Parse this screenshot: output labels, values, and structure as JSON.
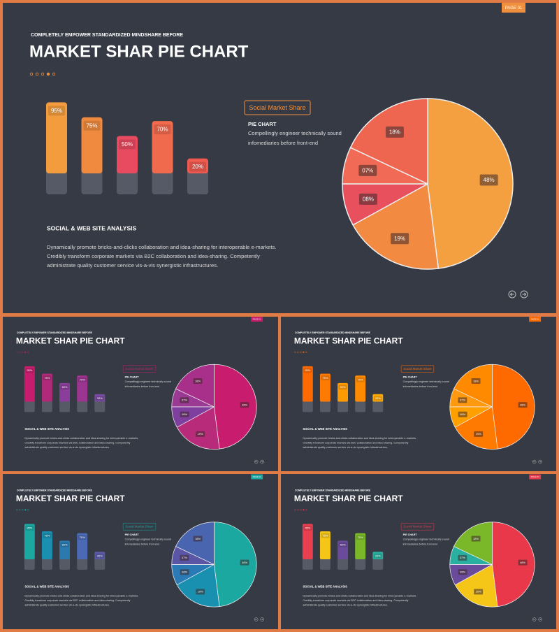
{
  "slides": [
    {
      "page_label": "PAGE 01",
      "kicker": "COMPLETELY  EMPOWER  STANDARDIZED  MINDSHARE  BEFORE",
      "title": "MARKET SHAR PIE CHART",
      "accent": "#f0903e",
      "bar_chart": {
        "type": "bar",
        "values": [
          95,
          75,
          50,
          70,
          20
        ],
        "value_labels": [
          "95%",
          "75%",
          "50%",
          "70%",
          "20%"
        ],
        "colors": [
          "#f39c3d",
          "#f08a3e",
          "#e84a5f",
          "#f06a4e",
          "#f05a50"
        ]
      },
      "tag": "Social Market  Share",
      "pie_heading": "PIE CHART",
      "pie_text": [
        "Compellingly engineer technically sound",
        "infomediaries before front-end"
      ],
      "analysis_title": "SOCIAL & WEB SITE ANALYSIS",
      "analysis_text": [
        "Dynamically promote bricks-and-clicks collaboration and idea-sharing for interoperable e-markets.",
        "Credibly transform corporate markets via B2C collaboration and idea-sharing. Competently",
        "administrate quality customer service vis-a-vis synergistic infrastructures."
      ],
      "pie_chart": {
        "type": "pie",
        "values": [
          48,
          19,
          8,
          7,
          18
        ],
        "value_labels": [
          "48%",
          "19%",
          "08%",
          "07%",
          "18%"
        ],
        "colors": [
          "#f5a040",
          "#f28a42",
          "#e8505e",
          "#f06a55",
          "#ef6650"
        ]
      }
    },
    {
      "page_label": "PAGE 01",
      "kicker": "COMPLETELY  EMPOWER  STANDARDIZED  MINDSHARE  BEFORE",
      "title": "MARKET SHAR PIE CHART",
      "accent": "#c81d6e",
      "bar_chart": {
        "type": "bar",
        "values": [
          95,
          75,
          50,
          70,
          20
        ],
        "value_labels": [
          "95%",
          "75%",
          "50%",
          "70%",
          "20%"
        ],
        "colors": [
          "#c81d6e",
          "#b02a7a",
          "#8a3d9a",
          "#9a3590",
          "#7a4aa0"
        ]
      },
      "tag": "Social Market  Share",
      "pie_heading": "PIE CHART",
      "pie_text": [
        "Compellingly engineer technically sound",
        "infomediaries before front-end"
      ],
      "analysis_title": "SOCIAL & WEB SITE ANALYSIS",
      "analysis_text": [
        "Dynamically promote bricks-and-clicks collaboration and idea-sharing for interoperable e-markets.",
        "Credibly transform corporate markets via B2C collaboration and idea-sharing. Competently",
        "administrate quality customer service vis-a-vis synergistic infrastructures."
      ],
      "pie_chart": {
        "type": "pie",
        "values": [
          48,
          19,
          8,
          7,
          18
        ],
        "value_labels": [
          "48%",
          "19%",
          "08%",
          "07%",
          "18%"
        ],
        "colors": [
          "#c81d6e",
          "#b82a7a",
          "#7e3f9e",
          "#9a3a95",
          "#a8308a"
        ]
      }
    },
    {
      "page_label": "PAGE 01",
      "kicker": "COMPLETELY  EMPOWER  STANDARDIZED  MINDSHARE  BEFORE",
      "title": "MARKET SHAR PIE CHART",
      "accent": "#ff6a00",
      "bar_chart": {
        "type": "bar",
        "values": [
          95,
          75,
          50,
          70,
          20
        ],
        "value_labels": [
          "95%",
          "75%",
          "50%",
          "70%",
          "20%"
        ],
        "colors": [
          "#ff6a00",
          "#ff7a00",
          "#ff9a00",
          "#ff8a00",
          "#ffaa00"
        ]
      },
      "tag": "Social Market  Share",
      "pie_heading": "PIE CHART",
      "pie_text": [
        "Compellingly engineer technically sound",
        "infomediaries before front-end"
      ],
      "analysis_title": "SOCIAL & WEB SITE ANALYSIS",
      "analysis_text": [
        "Dynamically promote bricks-and-clicks collaboration and idea-sharing for interoperable e-markets.",
        "Credibly transform corporate markets via B2C collaboration and idea-sharing. Competently",
        "administrate quality customer service vis-a-vis synergistic infrastructures."
      ],
      "pie_chart": {
        "type": "pie",
        "values": [
          48,
          19,
          8,
          7,
          18
        ],
        "value_labels": [
          "48%",
          "19%",
          "08%",
          "07%",
          "18%"
        ],
        "colors": [
          "#ff6a00",
          "#ff7a00",
          "#ffa000",
          "#ff9a10",
          "#ff8a00"
        ]
      }
    },
    {
      "page_label": "PAGE 01",
      "kicker": "COMPLETELY  EMPOWER  STANDARDIZED  MINDSHARE  BEFORE",
      "title": "MARKET SHAR PIE CHART",
      "accent": "#1aa8a0",
      "bar_chart": {
        "type": "bar",
        "values": [
          95,
          75,
          50,
          70,
          20
        ],
        "value_labels": [
          "95%",
          "75%",
          "50%",
          "70%",
          "20%"
        ],
        "colors": [
          "#1aa8a0",
          "#1a8fb0",
          "#2a7ab0",
          "#4a6ab5",
          "#5a5aa8"
        ]
      },
      "tag": "Social Market  Share",
      "pie_heading": "PIE CHART",
      "pie_text": [
        "Compellingly engineer technically sound",
        "infomediaries before front-end"
      ],
      "analysis_title": "SOCIAL & WEB SITE ANALYSIS",
      "analysis_text": [
        "Dynamically promote bricks-and-clicks collaboration and idea-sharing for interoperable e-markets.",
        "Credibly transform corporate markets via B2C collaboration and idea-sharing. Competently",
        "administrate quality customer service vis-a-vis synergistic infrastructures."
      ],
      "pie_chart": {
        "type": "pie",
        "values": [
          48,
          19,
          8,
          7,
          18
        ],
        "value_labels": [
          "48%",
          "19%",
          "08%",
          "07%",
          "18%"
        ],
        "colors": [
          "#1aa8a0",
          "#1a90b0",
          "#2a7ab5",
          "#5a55a5",
          "#4a65b0"
        ]
      }
    },
    {
      "page_label": "PAGE 01",
      "kicker": "COMPLETELY  EMPOWER  STANDARDIZED  MINDSHARE  BEFORE",
      "title": "MARKET SHAR PIE CHART",
      "accent": "#e8384a",
      "bar_chart": {
        "type": "bar",
        "values": [
          95,
          75,
          50,
          70,
          20
        ],
        "value_labels": [
          "95%",
          "75%",
          "50%",
          "70%",
          "20%"
        ],
        "colors": [
          "#e84050",
          "#f5c518",
          "#6a4a9a",
          "#7ab82a",
          "#2ab0a0"
        ]
      },
      "tag": "Social Market  Share",
      "pie_heading": "PIE CHART",
      "pie_text": [
        "Compellingly engineer technically sound",
        "infomediaries before front-end"
      ],
      "analysis_title": "SOCIAL & WEB SITE ANALYSIS",
      "analysis_text": [
        "Dynamically promote bricks-and-clicks collaboration and idea-sharing for interoperable e-markets.",
        "Credibly transform corporate markets via B2C collaboration and idea-sharing. Competently",
        "administrate quality customer service vis-a-vis synergistic infrastructures."
      ],
      "pie_chart": {
        "type": "pie",
        "values": [
          48,
          19,
          8,
          7,
          18
        ],
        "value_labels": [
          "48%",
          "19%",
          "08%",
          "07%",
          "18%"
        ],
        "colors": [
          "#e8384a",
          "#f5c518",
          "#6a4a9a",
          "#2ab0a0",
          "#7ab82a"
        ]
      }
    }
  ]
}
